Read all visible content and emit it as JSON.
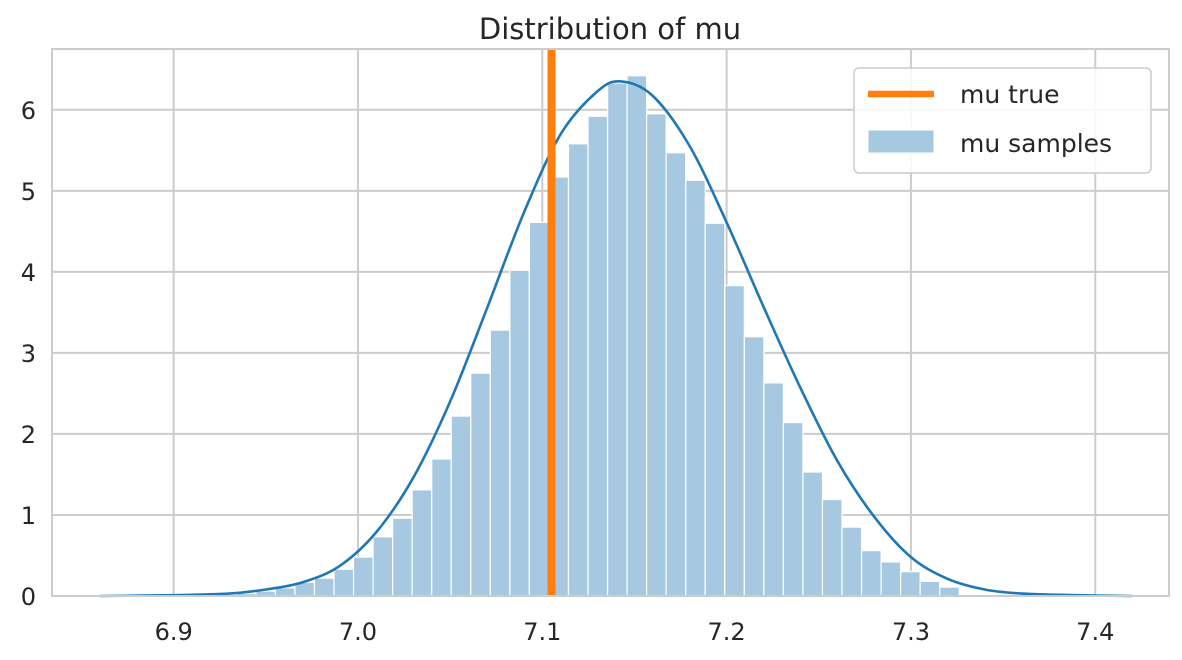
{
  "chart_data": {
    "type": "histogram",
    "title": "Distribution of mu",
    "xlim": [
      6.834,
      7.44
    ],
    "ylim": [
      0,
      6.75
    ],
    "x_ticks": [
      6.9,
      7.0,
      7.1,
      7.2,
      7.3,
      7.4
    ],
    "x_tick_labels": [
      "6.9",
      "7.0",
      "7.1",
      "7.2",
      "7.3",
      "7.4"
    ],
    "y_ticks": [
      0,
      1,
      2,
      3,
      4,
      5,
      6
    ],
    "y_tick_labels": [
      "0",
      "1",
      "2",
      "3",
      "4",
      "5",
      "6"
    ],
    "grid": true,
    "legend": {
      "position": "top-right",
      "entries": [
        {
          "label": "mu true",
          "kind": "line",
          "color": "#ff7f0e"
        },
        {
          "label": "mu samples",
          "kind": "patch",
          "color": "#a6c8e0"
        }
      ]
    },
    "mu_true": 7.105,
    "histogram": {
      "color": "#a6c8e0",
      "bin_edges": [
        6.934,
        6.9446,
        6.9552,
        6.9658,
        6.9764,
        6.987,
        6.9976,
        7.0082,
        7.0188,
        7.0294,
        7.04,
        7.0506,
        7.0612,
        7.0718,
        7.0824,
        7.093,
        7.1036,
        7.1142,
        7.1248,
        7.1354,
        7.146,
        7.1566,
        7.1672,
        7.1778,
        7.1884,
        7.199,
        7.2096,
        7.2202,
        7.2308,
        7.2414,
        7.252,
        7.2626,
        7.2732,
        7.2838,
        7.2944,
        7.305,
        7.3156,
        7.3262
      ],
      "densities": [
        0.03,
        0.06,
        0.1,
        0.17,
        0.22,
        0.33,
        0.48,
        0.73,
        0.96,
        1.31,
        1.69,
        2.22,
        2.75,
        3.28,
        4.02,
        4.61,
        5.17,
        5.58,
        5.92,
        6.33,
        6.42,
        5.95,
        5.47,
        5.13,
        4.6,
        3.83,
        3.2,
        2.63,
        2.14,
        1.53,
        1.19,
        0.85,
        0.56,
        0.42,
        0.3,
        0.18,
        0.11
      ]
    },
    "kde": {
      "color": "#1f77b4",
      "x": [
        6.86,
        6.9,
        6.93,
        6.95,
        6.97,
        6.99,
        7.01,
        7.03,
        7.05,
        7.07,
        7.09,
        7.11,
        7.13,
        7.143,
        7.16,
        7.18,
        7.2,
        7.22,
        7.24,
        7.26,
        7.28,
        7.3,
        7.32,
        7.34,
        7.36,
        7.39,
        7.42
      ],
      "y": [
        0.0,
        0.01,
        0.03,
        0.08,
        0.17,
        0.37,
        0.79,
        1.46,
        2.4,
        3.55,
        4.73,
        5.7,
        6.23,
        6.35,
        6.17,
        5.55,
        4.61,
        3.57,
        2.57,
        1.67,
        0.98,
        0.48,
        0.21,
        0.08,
        0.03,
        0.01,
        0.0
      ]
    }
  }
}
